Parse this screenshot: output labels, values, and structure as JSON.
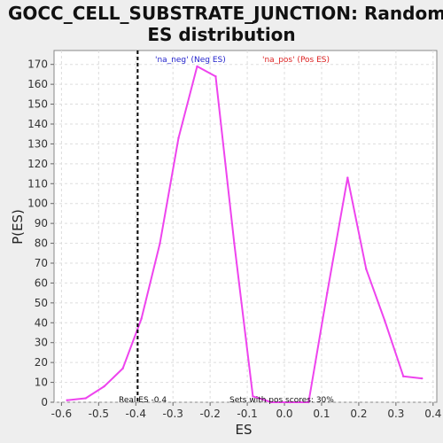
{
  "chart_data": {
    "type": "line",
    "title_line1": "GOCC_CELL_SUBSTRATE_JUNCTION: Random",
    "title_line2": "ES distribution",
    "xlabel": "ES",
    "ylabel": "P(ES)",
    "xlim": [
      -0.62,
      0.41
    ],
    "ylim": [
      0,
      177
    ],
    "x_ticks": [
      -0.6,
      -0.5,
      -0.4,
      -0.3,
      -0.2,
      -0.1,
      0.0,
      0.1,
      0.2,
      0.3,
      0.4
    ],
    "x_tick_labels": [
      "-0.6",
      "-0.5",
      "-0.4",
      "-0.3",
      "-0.2",
      "-0.1",
      "0.0",
      "0.1",
      "0.2",
      "0.3",
      "0.4"
    ],
    "y_ticks": [
      0,
      10,
      20,
      30,
      40,
      50,
      60,
      70,
      80,
      90,
      100,
      110,
      120,
      130,
      140,
      150,
      160,
      170
    ],
    "y_tick_labels": [
      "0",
      "10",
      "20",
      "30",
      "40",
      "50",
      "60",
      "70",
      "80",
      "90",
      "100",
      "110",
      "120",
      "130",
      "140",
      "150",
      "160",
      "170"
    ],
    "grid": true,
    "legend_neg": "'na_neg' (Neg ES)",
    "legend_pos": "'na_pos' (Pos ES)",
    "series_color": "#ee44ee",
    "legend_neg_color": "#2222cc",
    "legend_pos_color": "#dd2222",
    "points": [
      {
        "x": -0.585,
        "y": 1
      },
      {
        "x": -0.535,
        "y": 2
      },
      {
        "x": -0.485,
        "y": 8
      },
      {
        "x": -0.435,
        "y": 17
      },
      {
        "x": -0.385,
        "y": 42
      },
      {
        "x": -0.335,
        "y": 80
      },
      {
        "x": -0.285,
        "y": 133
      },
      {
        "x": -0.235,
        "y": 169
      },
      {
        "x": -0.185,
        "y": 164
      },
      {
        "x": -0.135,
        "y": 80
      },
      {
        "x": -0.085,
        "y": 3
      },
      {
        "x": -0.035,
        "y": 0
      },
      {
        "x": 0.015,
        "y": 0
      },
      {
        "x": 0.065,
        "y": 0
      },
      {
        "x": 0.115,
        "y": 55
      },
      {
        "x": 0.17,
        "y": 113
      },
      {
        "x": 0.22,
        "y": 67
      },
      {
        "x": 0.27,
        "y": 41
      },
      {
        "x": 0.32,
        "y": 13
      },
      {
        "x": 0.37,
        "y": 12
      }
    ],
    "real_es": -0.395,
    "real_es_label": "Real ES -0.4",
    "pos_scores_label": "Sets with pos scores: 30%"
  }
}
